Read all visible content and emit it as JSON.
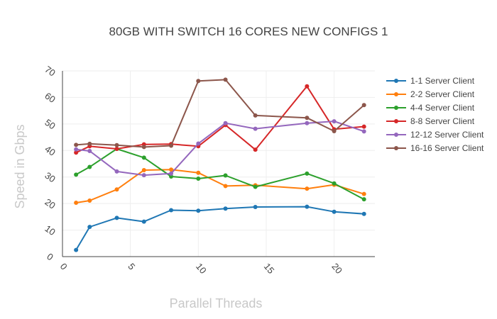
{
  "chart_data": {
    "type": "line",
    "title": "80GB WITH SWITCH 16 CORES NEW CONFIGS 1",
    "xlabel": "Parallel Threads",
    "ylabel": "Speed in Gbps",
    "xlim": [
      0,
      23
    ],
    "ylim": [
      0,
      70
    ],
    "x_ticks": [
      0,
      5,
      10,
      15,
      20
    ],
    "y_ticks": [
      0,
      10,
      20,
      30,
      40,
      50,
      60,
      70
    ],
    "grid": true,
    "legend_position": "right",
    "series": [
      {
        "name": "1-1 Server Client",
        "color": "#1f77b4",
        "points": [
          [
            1,
            2.5
          ],
          [
            2,
            11.2
          ],
          [
            4,
            14.6
          ],
          [
            6,
            13.2
          ],
          [
            8,
            17.5
          ],
          [
            10,
            17.3
          ],
          [
            12,
            18.1
          ],
          [
            14.2,
            18.7
          ],
          [
            18,
            18.8
          ],
          [
            20,
            16.9
          ],
          [
            22.2,
            16.1
          ]
        ]
      },
      {
        "name": "2-2 Server Client",
        "color": "#ff7f0e",
        "points": [
          [
            1,
            20.3
          ],
          [
            2,
            21.1
          ],
          [
            4,
            25.3
          ],
          [
            6,
            32.6
          ],
          [
            8,
            32.8
          ],
          [
            10,
            31.6
          ],
          [
            12,
            26.6
          ],
          [
            14.2,
            26.9
          ],
          [
            18,
            25.6
          ],
          [
            20,
            27.1
          ],
          [
            22.2,
            23.6
          ]
        ]
      },
      {
        "name": "4-4 Server Client",
        "color": "#2ca02c",
        "points": [
          [
            1,
            30.9
          ],
          [
            2,
            33.8
          ],
          [
            4,
            40.6
          ],
          [
            6,
            37.3
          ],
          [
            8,
            30.2
          ],
          [
            10,
            29.4
          ],
          [
            12,
            30.6
          ],
          [
            14.2,
            26.3
          ],
          [
            18,
            31.3
          ],
          [
            20,
            27.6
          ],
          [
            22.2,
            21.6
          ]
        ]
      },
      {
        "name": "8-8 Server Client",
        "color": "#d62728",
        "points": [
          [
            1,
            39.2
          ],
          [
            2,
            41.6
          ],
          [
            4,
            40.6
          ],
          [
            6,
            42.3
          ],
          [
            8,
            42.4
          ],
          [
            10,
            41.6
          ],
          [
            12,
            49.6
          ],
          [
            14.2,
            40.3
          ],
          [
            18,
            64.2
          ],
          [
            20,
            48.0
          ],
          [
            22.2,
            49.0
          ]
        ]
      },
      {
        "name": "12-12 Server Client",
        "color": "#9467bd",
        "points": [
          [
            1,
            40.4
          ],
          [
            2,
            39.8
          ],
          [
            4,
            32.1
          ],
          [
            6,
            30.7
          ],
          [
            8,
            31.3
          ],
          [
            10,
            42.6
          ],
          [
            12,
            50.3
          ],
          [
            14.2,
            48.2
          ],
          [
            18,
            50.3
          ],
          [
            20,
            51.0
          ],
          [
            22.2,
            47.2
          ]
        ]
      },
      {
        "name": "16-16 Server Client",
        "color": "#8c564b",
        "points": [
          [
            1,
            42.1
          ],
          [
            2,
            42.5
          ],
          [
            4,
            42.0
          ],
          [
            6,
            41.3
          ],
          [
            8,
            41.8
          ],
          [
            10,
            66.2
          ],
          [
            12,
            66.7
          ],
          [
            14.2,
            53.2
          ],
          [
            18,
            52.3
          ],
          [
            20,
            47.3
          ],
          [
            22.2,
            57.1
          ]
        ]
      }
    ]
  }
}
